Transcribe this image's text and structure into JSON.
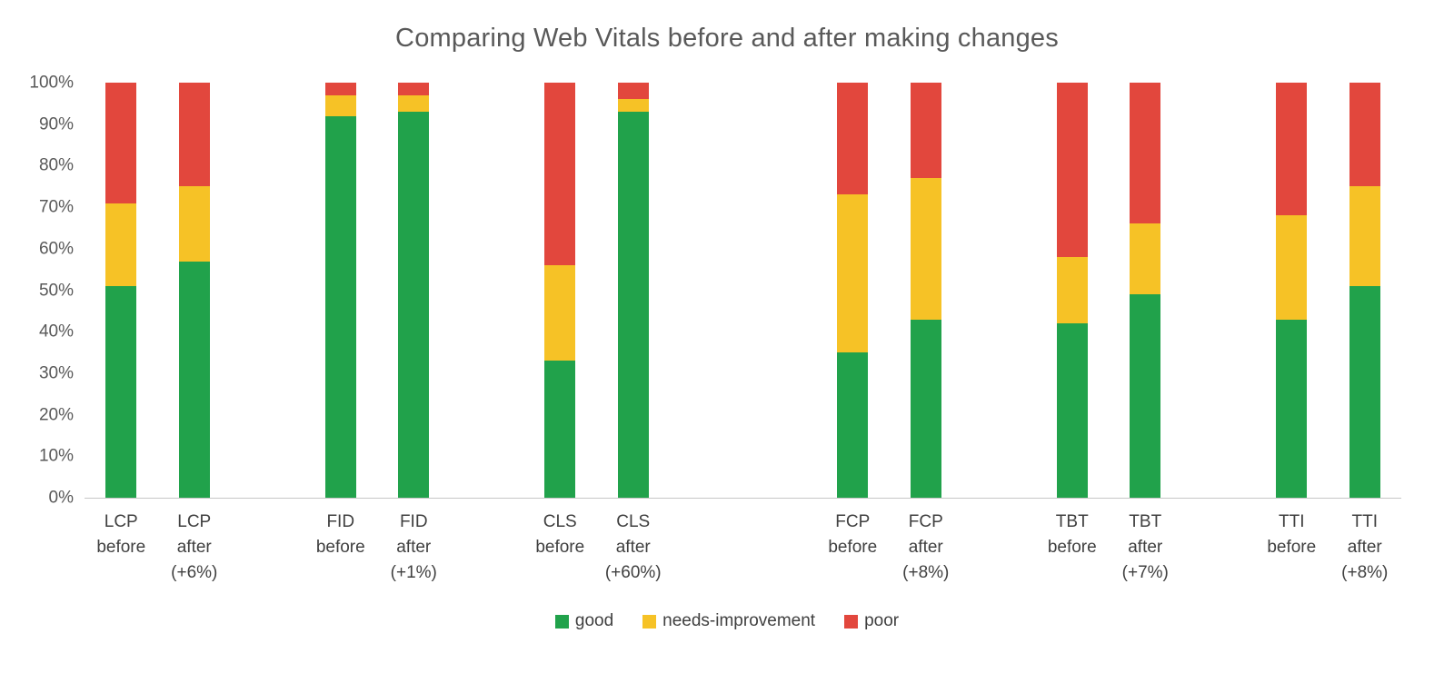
{
  "chart_data": {
    "type": "bar",
    "variant": "stacked-100-percent",
    "title": "Comparing Web Vitals before and after making changes",
    "xlabel": "",
    "ylabel": "",
    "ylim": [
      0,
      100
    ],
    "grid": false,
    "y_tick_labels": [
      "0%",
      "10%",
      "20%",
      "30%",
      "40%",
      "50%",
      "60%",
      "70%",
      "80%",
      "90%",
      "100%"
    ],
    "legend": {
      "position": "bottom",
      "entries": [
        {
          "name": "good",
          "label": "good",
          "color": "#21A24B"
        },
        {
          "name": "needs-improvement",
          "label": "needs-improvement",
          "color": "#F6C226"
        },
        {
          "name": "poor",
          "label": "poor",
          "color": "#E2473D"
        }
      ]
    },
    "bars": [
      {
        "id": "lcp-before",
        "label_lines": [
          "LCP",
          "before"
        ],
        "values": {
          "good": 51,
          "needs-improvement": 20,
          "poor": 29
        }
      },
      {
        "id": "lcp-after",
        "label_lines": [
          "LCP",
          "after",
          "(+6%)"
        ],
        "values": {
          "good": 57,
          "needs-improvement": 18,
          "poor": 25
        }
      },
      {
        "id": "fid-before",
        "label_lines": [
          "FID",
          "before"
        ],
        "values": {
          "good": 92,
          "needs-improvement": 5,
          "poor": 3
        }
      },
      {
        "id": "fid-after",
        "label_lines": [
          "FID",
          "after",
          "(+1%)"
        ],
        "values": {
          "good": 93,
          "needs-improvement": 4,
          "poor": 3
        }
      },
      {
        "id": "cls-before",
        "label_lines": [
          "CLS",
          "before"
        ],
        "values": {
          "good": 33,
          "needs-improvement": 23,
          "poor": 44
        }
      },
      {
        "id": "cls-after",
        "label_lines": [
          "CLS",
          "after",
          "(+60%)"
        ],
        "values": {
          "good": 93,
          "needs-improvement": 3,
          "poor": 4
        }
      },
      {
        "id": "fcp-before",
        "label_lines": [
          "FCP",
          "before"
        ],
        "values": {
          "good": 35,
          "needs-improvement": 38,
          "poor": 27
        }
      },
      {
        "id": "fcp-after",
        "label_lines": [
          "FCP",
          "after",
          "(+8%)"
        ],
        "values": {
          "good": 43,
          "needs-improvement": 34,
          "poor": 23
        }
      },
      {
        "id": "tbt-before",
        "label_lines": [
          "TBT",
          "before"
        ],
        "values": {
          "good": 42,
          "needs-improvement": 16,
          "poor": 42
        }
      },
      {
        "id": "tbt-after",
        "label_lines": [
          "TBT",
          "after",
          "(+7%)"
        ],
        "values": {
          "good": 49,
          "needs-improvement": 17,
          "poor": 34
        }
      },
      {
        "id": "tti-before",
        "label_lines": [
          "TTI",
          "before"
        ],
        "values": {
          "good": 43,
          "needs-improvement": 25,
          "poor": 32
        }
      },
      {
        "id": "tti-after",
        "label_lines": [
          "TTI",
          "after",
          "(+8%)"
        ],
        "values": {
          "good": 51,
          "needs-improvement": 24,
          "poor": 25
        }
      }
    ]
  }
}
